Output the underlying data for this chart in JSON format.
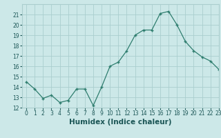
{
  "x": [
    0,
    1,
    2,
    3,
    4,
    5,
    6,
    7,
    8,
    9,
    10,
    11,
    12,
    13,
    14,
    15,
    16,
    17,
    18,
    19,
    20,
    21,
    22,
    23
  ],
  "y": [
    14.5,
    13.8,
    12.9,
    13.2,
    12.5,
    12.7,
    13.8,
    13.8,
    12.2,
    14.0,
    16.0,
    16.4,
    17.5,
    19.0,
    19.5,
    19.5,
    21.1,
    21.3,
    20.0,
    18.4,
    17.5,
    16.9,
    16.5,
    15.7
  ],
  "line_color": "#2e7d6e",
  "marker": "+",
  "bg_color": "#cce8e8",
  "grid_color": "#aacece",
  "xlabel": "Humidex (Indice chaleur)",
  "ylim": [
    12,
    22
  ],
  "xlim": [
    -0.5,
    23
  ],
  "yticks": [
    12,
    13,
    14,
    15,
    16,
    17,
    18,
    19,
    20,
    21
  ],
  "xticks": [
    0,
    1,
    2,
    3,
    4,
    5,
    6,
    7,
    8,
    9,
    10,
    11,
    12,
    13,
    14,
    15,
    16,
    17,
    18,
    19,
    20,
    21,
    22,
    23
  ],
  "tick_label_fontsize": 5.5,
  "xlabel_fontsize": 7.5
}
